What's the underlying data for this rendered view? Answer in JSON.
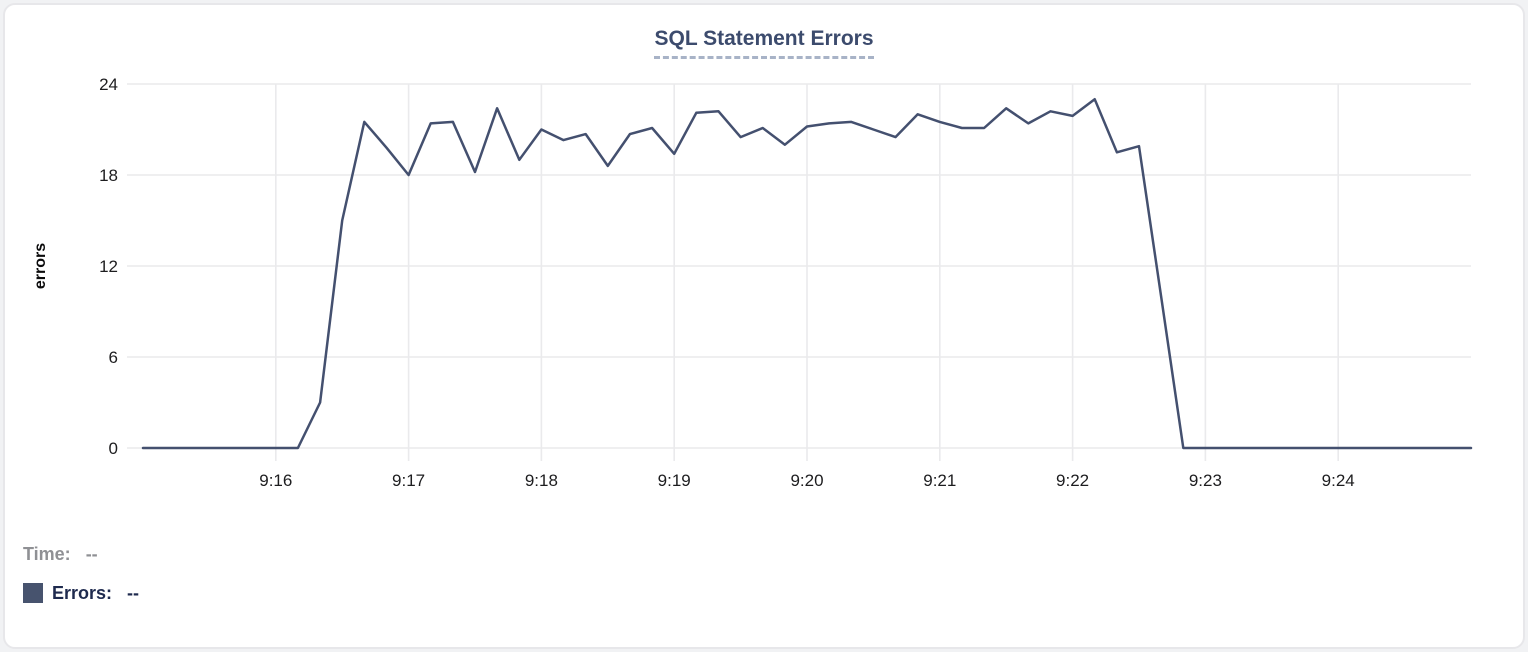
{
  "panel": {
    "title": "SQL Statement Errors"
  },
  "chart_data": {
    "type": "line",
    "title": "SQL Statement Errors",
    "xlabel": "",
    "ylabel": "errors",
    "ylim": [
      0,
      24
    ],
    "y_ticks": [
      0,
      6,
      12,
      18,
      24
    ],
    "x_tick_labels": [
      "9:16",
      "9:17",
      "9:18",
      "9:19",
      "9:20",
      "9:21",
      "9:22",
      "9:23",
      "9:24"
    ],
    "x_range": [
      "9:15:00",
      "9:25:00"
    ],
    "interval_seconds": 10,
    "grid": true,
    "legend_position": "bottom-left",
    "series": [
      {
        "name": "Errors",
        "color": "#44506f",
        "x": [
          "9:15:00",
          "9:15:10",
          "9:15:20",
          "9:15:30",
          "9:15:40",
          "9:15:50",
          "9:16:00",
          "9:16:10",
          "9:16:20",
          "9:16:30",
          "9:16:40",
          "9:16:50",
          "9:17:00",
          "9:17:10",
          "9:17:20",
          "9:17:30",
          "9:17:40",
          "9:17:50",
          "9:18:00",
          "9:18:10",
          "9:18:20",
          "9:18:30",
          "9:18:40",
          "9:18:50",
          "9:19:00",
          "9:19:10",
          "9:19:20",
          "9:19:30",
          "9:19:40",
          "9:19:50",
          "9:20:00",
          "9:20:10",
          "9:20:20",
          "9:20:30",
          "9:20:40",
          "9:20:50",
          "9:21:00",
          "9:21:10",
          "9:21:20",
          "9:21:30",
          "9:21:40",
          "9:21:50",
          "9:22:00",
          "9:22:10",
          "9:22:20",
          "9:22:30",
          "9:22:40",
          "9:22:50",
          "9:23:00",
          "9:23:10",
          "9:23:20",
          "9:23:30",
          "9:23:40",
          "9:23:50",
          "9:24:00",
          "9:24:10",
          "9:24:20",
          "9:24:30",
          "9:24:40",
          "9:24:50",
          "9:25:00"
        ],
        "values": [
          0,
          0,
          0,
          0,
          0,
          0,
          0,
          0,
          3,
          15,
          21.5,
          19.8,
          18,
          21.4,
          21.5,
          18.2,
          22.4,
          19,
          21,
          20.3,
          20.7,
          18.6,
          20.7,
          21.1,
          19.4,
          22.1,
          22.2,
          20.5,
          21.1,
          20,
          21.2,
          21.4,
          21.5,
          21,
          20.5,
          22,
          21.5,
          21.1,
          21.1,
          22.4,
          21.4,
          22.2,
          21.9,
          23,
          19.5,
          19.9,
          10,
          0,
          0,
          0,
          0,
          0,
          0,
          0,
          0,
          0,
          0,
          0,
          0,
          0,
          0
        ]
      }
    ]
  },
  "tooltip_legend": {
    "time_label": "Time:",
    "time_value": "--",
    "errors_label": "Errors:",
    "errors_value": "--",
    "swatch_color": "#47536e"
  },
  "colors": {
    "series_line": "#44506f",
    "title_accent": "#3c4b6d",
    "title_underline": "#a8b3c7",
    "gridline": "#eaeaec",
    "tick_text": "#1d1d1f",
    "muted_text": "#8f9094",
    "legend_text": "#1e2a4e",
    "card_border": "#e7e7ea",
    "background": "#ffffff"
  }
}
